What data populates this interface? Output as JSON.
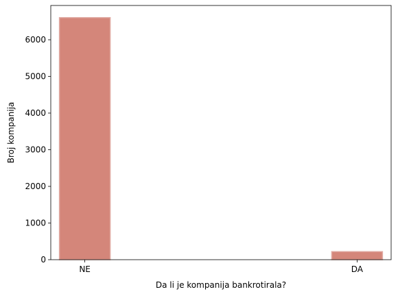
{
  "chart_data": {
    "type": "bar",
    "categories": [
      "NE",
      "DA"
    ],
    "values": [
      6605,
      220
    ],
    "title": "",
    "xlabel": "Da li je kompanija bankrotirala?",
    "ylabel": "Broj kompanija",
    "ylim": [
      0,
      6935
    ],
    "yticks": [
      0,
      1000,
      2000,
      3000,
      4000,
      5000,
      6000
    ],
    "grid": false,
    "bar_color": "#d4867a",
    "bar_edge_color": "#e0aaa3"
  }
}
